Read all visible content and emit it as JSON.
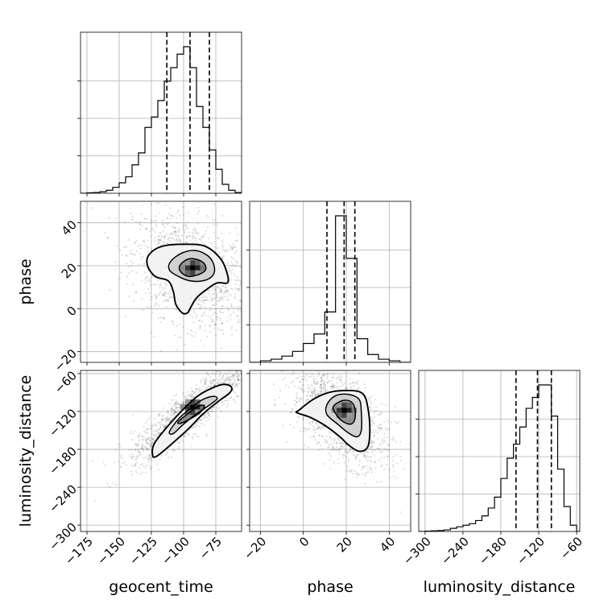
{
  "chart_data": {
    "type": "corner",
    "parameters": [
      "geocent_time",
      "phase",
      "luminosity_distance"
    ],
    "axes": {
      "geocent_time": {
        "label": "geocent_time",
        "range": [
          -180,
          -55
        ],
        "ticks": [
          -175,
          -150,
          -125,
          -100,
          -75
        ],
        "tick_labels": [
          "−175",
          "−150",
          "−125",
          "−100",
          "−75"
        ]
      },
      "phase": {
        "label": "phase",
        "range": [
          -25,
          50
        ],
        "ticks": [
          -20,
          0,
          20,
          40
        ],
        "tick_labels": [
          "−20",
          "0",
          "20",
          "40"
        ]
      },
      "luminosity_distance": {
        "label": "luminosity_distance",
        "range": [
          -310,
          -55
        ],
        "ticks": [
          -300,
          -240,
          -180,
          -120,
          -60
        ],
        "tick_labels": [
          "−300",
          "−240",
          "−180",
          "−120",
          "−60"
        ]
      }
    },
    "marginals": {
      "geocent_time": {
        "bin_edges": [
          -180,
          -175,
          -170,
          -165,
          -160,
          -155,
          -150,
          -145,
          -140,
          -135,
          -130,
          -125,
          -120,
          -115,
          -110,
          -105,
          -100,
          -95,
          -90,
          -85,
          -80,
          -75,
          -70,
          -65,
          -60,
          -55
        ],
        "counts": [
          0.0,
          0.003,
          0.005,
          0.01,
          0.02,
          0.04,
          0.07,
          0.11,
          0.19,
          0.27,
          0.44,
          0.51,
          0.62,
          0.75,
          0.84,
          0.93,
          0.98,
          0.84,
          0.58,
          0.44,
          0.29,
          0.16,
          0.06,
          0.02,
          0.005
        ],
        "quantiles": [
          -113,
          -95,
          -80
        ]
      },
      "phase": {
        "bin_edges": [
          -25,
          -20,
          -15,
          -10,
          -5,
          0,
          5,
          10,
          15,
          20,
          25,
          30,
          35,
          40,
          45,
          50
        ],
        "counts": [
          0.0,
          0.01,
          0.02,
          0.04,
          0.07,
          0.12,
          0.18,
          0.32,
          0.93,
          0.66,
          0.15,
          0.05,
          0.02,
          0.01,
          0.0
        ],
        "quantiles": [
          11,
          19,
          24
        ]
      },
      "luminosity_distance": {
        "bin_edges": [
          -310,
          -300,
          -290,
          -280,
          -270,
          -260,
          -250,
          -240,
          -230,
          -220,
          -210,
          -200,
          -190,
          -180,
          -170,
          -160,
          -150,
          -140,
          -130,
          -120,
          -110,
          -100,
          -90,
          -80,
          -70,
          -60,
          -50
        ],
        "counts": [
          0.0,
          0.002,
          0.004,
          0.006,
          0.01,
          0.02,
          0.03,
          0.04,
          0.05,
          0.07,
          0.1,
          0.15,
          0.22,
          0.34,
          0.47,
          0.56,
          0.67,
          0.79,
          0.86,
          0.94,
          0.94,
          0.74,
          0.4,
          0.16,
          0.04,
          0.0
        ],
        "quantiles": [
          -156,
          -122,
          -100
        ]
      }
    },
    "joints": [
      {
        "x": "geocent_time",
        "y": "phase",
        "peak": [
          -93,
          19
        ],
        "contours": [
          [
            [
              -127,
              25
            ],
            [
              -117,
              29
            ],
            [
              -99,
              30
            ],
            [
              -83,
              29
            ],
            [
              -71,
              23
            ],
            [
              -66,
              16
            ],
            [
              -66,
              12
            ],
            [
              -74,
              12
            ],
            [
              -82,
              9
            ],
            [
              -90,
              5
            ],
            [
              -95,
              0
            ],
            [
              -97,
              -2
            ],
            [
              -101,
              -2
            ],
            [
              -106,
              2
            ],
            [
              -108,
              8
            ],
            [
              -112,
              13
            ],
            [
              -122,
              15
            ],
            [
              -128,
              20
            ]
          ],
          [
            [
              -110,
              22
            ],
            [
              -101,
              26
            ],
            [
              -90,
              27
            ],
            [
              -80,
              24
            ],
            [
              -76,
              19
            ],
            [
              -78,
              15
            ],
            [
              -85,
              13
            ],
            [
              -95,
              13
            ],
            [
              -104,
              15
            ],
            [
              -111,
              18
            ]
          ],
          [
            [
              -103,
              20
            ],
            [
              -97,
              23
            ],
            [
              -90,
              23
            ],
            [
              -84,
              21
            ],
            [
              -83,
              18
            ],
            [
              -88,
              16
            ],
            [
              -96,
              15
            ],
            [
              -102,
              17
            ]
          ]
        ]
      },
      {
        "x": "geocent_time",
        "y": "luminosity_distance",
        "peak": [
          -93,
          -113
        ],
        "contours": [
          [
            [
              -124,
              -190
            ],
            [
              -123,
              -172
            ],
            [
              -113,
              -145
            ],
            [
              -99,
              -114
            ],
            [
              -88,
              -94
            ],
            [
              -78,
              -83
            ],
            [
              -69,
              -77
            ],
            [
              -63,
              -81
            ],
            [
              -64,
              -90
            ],
            [
              -73,
              -104
            ],
            [
              -85,
              -124
            ],
            [
              -97,
              -149
            ],
            [
              -113,
              -178
            ],
            [
              -121,
              -191
            ]
          ],
          [
            [
              -111,
              -152
            ],
            [
              -104,
              -132
            ],
            [
              -94,
              -114
            ],
            [
              -85,
              -101
            ],
            [
              -77,
              -96
            ],
            [
              -74,
              -100
            ],
            [
              -80,
              -110
            ],
            [
              -91,
              -125
            ],
            [
              -101,
              -142
            ],
            [
              -108,
              -155
            ]
          ],
          [
            [
              -104,
              -136
            ],
            [
              -97,
              -124
            ],
            [
              -91,
              -115
            ],
            [
              -86,
              -110
            ],
            [
              -84,
              -113
            ],
            [
              -88,
              -123
            ],
            [
              -96,
              -133
            ],
            [
              -103,
              -139
            ]
          ]
        ]
      },
      {
        "x": "phase",
        "y": "luminosity_distance",
        "peak": [
          19,
          -118
        ],
        "contours": [
          [
            [
              -2,
              -118
            ],
            [
              5,
              -100
            ],
            [
              13,
              -89
            ],
            [
              23,
              -87
            ],
            [
              28,
              -93
            ],
            [
              30,
              -113
            ],
            [
              31,
              -148
            ],
            [
              30,
              -176
            ],
            [
              26,
              -183
            ],
            [
              21,
              -173
            ],
            [
              17,
              -160
            ],
            [
              10,
              -142
            ],
            [
              3,
              -129
            ],
            [
              -3,
              -122
            ]
          ],
          [
            [
              11,
              -109
            ],
            [
              15,
              -95
            ],
            [
              21,
              -93
            ],
            [
              26,
              -101
            ],
            [
              27,
              -121
            ],
            [
              27,
              -150
            ],
            [
              25,
              -160
            ],
            [
              21,
              -154
            ],
            [
              16,
              -140
            ],
            [
              11,
              -125
            ]
          ],
          [
            [
              14,
              -112
            ],
            [
              18,
              -103
            ],
            [
              22,
              -104
            ],
            [
              24,
              -115
            ],
            [
              24,
              -132
            ],
            [
              22,
              -140
            ],
            [
              18,
              -135
            ],
            [
              15,
              -123
            ]
          ]
        ]
      }
    ]
  }
}
